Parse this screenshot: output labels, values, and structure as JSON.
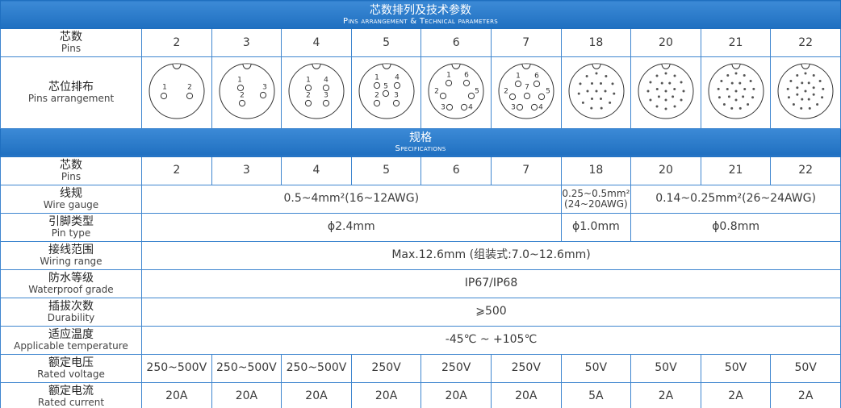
{
  "header": {
    "title": "芯数排列及技术参数",
    "subtitle": "Pins arrangement & Technical parameters"
  },
  "pins_row": {
    "label": "芯数",
    "label_en": "Pins",
    "values": [
      "2",
      "3",
      "4",
      "5",
      "6",
      "7",
      "18",
      "20",
      "21",
      "22"
    ]
  },
  "arrangement_row": {
    "label": "芯位排布",
    "label_en": "Pins arrangement",
    "diagram_labels": [
      [
        "1",
        "2"
      ],
      [
        "1",
        "2",
        "3"
      ],
      [
        "1",
        "2",
        "3",
        "4"
      ],
      [
        "1",
        "2",
        "3",
        "4",
        "5"
      ],
      [
        "1",
        "2",
        "3",
        "4",
        "5",
        "6"
      ],
      [
        "1",
        "2",
        "3",
        "4",
        "5",
        "6",
        "7"
      ]
    ]
  },
  "section": {
    "title": "规格",
    "subtitle": "Specifications"
  },
  "spec_rows": [
    {
      "label": "芯数",
      "label_en": "Pins",
      "cells": [
        "2",
        "3",
        "4",
        "5",
        "6",
        "7",
        "18",
        "20",
        "21",
        "22"
      ]
    },
    {
      "label": "线规",
      "label_en": "Wire gauge",
      "cells": [
        "0.5~4mm²(16~12AWG)",
        "0.25~0.5mm²\n(24~20AWG)",
        "0.14~0.25mm²(26~24AWG)"
      ]
    },
    {
      "label": "引脚类型",
      "label_en": "Pin type",
      "cells": [
        "ϕ2.4mm",
        "ϕ1.0mm",
        "ϕ0.8mm"
      ]
    },
    {
      "label": "接线范围",
      "label_en": "Wiring range",
      "cells": [
        "Max.12.6mm (组装式:7.0~12.6mm)"
      ]
    },
    {
      "label": "防水等级",
      "label_en": "Waterproof grade",
      "cells": [
        "IP67/IP68"
      ]
    },
    {
      "label": "插拔次数",
      "label_en": "Durability",
      "cells": [
        "⩾500"
      ]
    },
    {
      "label": "适应温度",
      "label_en": "Applicable temperature",
      "cells": [
        "-45℃ ~ +105℃"
      ]
    },
    {
      "label": "额定电压",
      "label_en": "Rated voltage",
      "cells": [
        "250~500V",
        "250~500V",
        "250~500V",
        "250V",
        "250V",
        "250V",
        "50V",
        "50V",
        "50V",
        "50V"
      ]
    },
    {
      "label": "额定电流",
      "label_en": "Rated current",
      "cells": [
        "20A",
        "20A",
        "20A",
        "20A",
        "20A",
        "20A",
        "5A",
        "2A",
        "2A",
        "2A"
      ]
    }
  ]
}
